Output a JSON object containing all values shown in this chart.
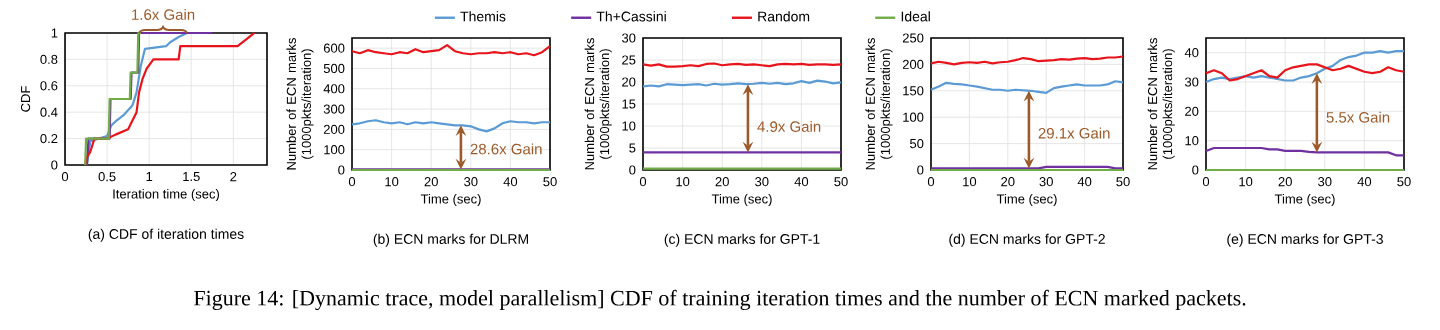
{
  "chart_data": [
    {
      "type": "line",
      "title": "(a) CDF of iteration times",
      "xlabel": "Iteration time (sec)",
      "ylabel": "CDF",
      "xlim": [
        0,
        2.4
      ],
      "xticks": [
        0,
        0.5,
        1,
        1.5,
        2
      ],
      "ylim": [
        0,
        1
      ],
      "yticks": [
        0,
        0.2,
        0.4,
        0.6,
        0.8,
        1
      ],
      "grid": true,
      "annotations": [
        "1.6x Gain"
      ],
      "series": [
        {
          "color": "#5b9bd5",
          "x": [
            0.26,
            0.3,
            0.4,
            0.5,
            0.55,
            0.6,
            0.7,
            0.8,
            0.85,
            0.9,
            0.95,
            1.2,
            1.25,
            1.35,
            1.45
          ],
          "values": [
            0,
            0.18,
            0.2,
            0.22,
            0.3,
            0.33,
            0.38,
            0.45,
            0.55,
            0.75,
            0.88,
            0.9,
            0.93,
            0.97,
            1
          ]
        },
        {
          "color": "#7030a0",
          "x": [
            0.26,
            0.28,
            0.53,
            0.54,
            0.78,
            0.79,
            0.87,
            0.88,
            1.75
          ],
          "values": [
            0,
            0.2,
            0.2,
            0.5,
            0.5,
            0.7,
            0.7,
            1,
            1
          ]
        },
        {
          "color": "#e8141b",
          "x": [
            0.24,
            0.25,
            0.3,
            0.35,
            0.5,
            0.6,
            0.75,
            0.85,
            0.88,
            0.92,
            0.97,
            1.05,
            1.35,
            1.37,
            2.05,
            2.15,
            2.25
          ],
          "values": [
            0,
            0.05,
            0.1,
            0.2,
            0.2,
            0.23,
            0.27,
            0.4,
            0.55,
            0.65,
            0.73,
            0.8,
            0.8,
            0.9,
            0.9,
            0.95,
            1
          ]
        },
        {
          "color": "#70ad47",
          "x": [
            0.24,
            0.25,
            0.52,
            0.53,
            0.77,
            0.78,
            0.86,
            0.87,
            0.9
          ],
          "values": [
            0,
            0.2,
            0.2,
            0.5,
            0.5,
            0.7,
            0.7,
            1,
            1
          ]
        }
      ]
    },
    {
      "type": "line",
      "title": "(b) ECN marks for DLRM",
      "xlabel": "Time (sec)",
      "ylabel": "Number of ECN marks (1000pkts/iteration)",
      "xlim": [
        0,
        50
      ],
      "xticks": [
        0,
        10,
        20,
        30,
        40,
        50
      ],
      "ylim": [
        0,
        650
      ],
      "yticks": [
        0,
        100,
        200,
        300,
        400,
        500,
        600
      ],
      "grid": true,
      "legend": "top",
      "annotations": [
        "28.6x Gain"
      ],
      "x": [
        0,
        2,
        4,
        6,
        8,
        10,
        12,
        14,
        16,
        18,
        20,
        22,
        24,
        26,
        28,
        30,
        32,
        34,
        36,
        38,
        40,
        42,
        44,
        46,
        48,
        50
      ],
      "series": [
        {
          "name": "Themis",
          "color": "#5b9bd5",
          "values": [
            225,
            230,
            240,
            245,
            235,
            230,
            235,
            225,
            235,
            230,
            235,
            230,
            225,
            220,
            220,
            215,
            200,
            190,
            205,
            230,
            240,
            235,
            235,
            230,
            235,
            235
          ]
        },
        {
          "name": "Th+Cassini",
          "color": "#7030a0",
          "values": [
            3,
            3,
            3,
            3,
            3,
            3,
            3,
            3,
            3,
            3,
            3,
            3,
            3,
            3,
            3,
            3,
            3,
            3,
            3,
            3,
            3,
            3,
            3,
            3,
            3,
            3
          ]
        },
        {
          "name": "Random",
          "color": "#e8141b",
          "values": [
            585,
            575,
            590,
            580,
            575,
            570,
            580,
            575,
            595,
            580,
            585,
            590,
            615,
            585,
            575,
            570,
            575,
            575,
            580,
            575,
            580,
            570,
            575,
            565,
            580,
            610
          ]
        },
        {
          "name": "Ideal",
          "color": "#70ad47",
          "values": [
            0,
            0,
            0,
            0,
            0,
            0,
            0,
            0,
            0,
            0,
            0,
            0,
            0,
            0,
            0,
            0,
            0,
            0,
            0,
            0,
            0,
            0,
            0,
            0,
            0,
            0
          ]
        }
      ]
    },
    {
      "type": "line",
      "title": "(c) ECN marks for GPT-1",
      "xlabel": "Time (sec)",
      "ylabel": "Number of ECN marks (1000pkts/iteration)",
      "xlim": [
        0,
        50
      ],
      "xticks": [
        0,
        10,
        20,
        30,
        40,
        50
      ],
      "ylim": [
        0,
        30
      ],
      "yticks": [
        0,
        5,
        10,
        15,
        20,
        25,
        30
      ],
      "grid": true,
      "annotations": [
        "4.9x Gain"
      ],
      "x": [
        0,
        2,
        4,
        6,
        8,
        10,
        12,
        14,
        16,
        18,
        20,
        22,
        24,
        26,
        28,
        30,
        32,
        34,
        36,
        38,
        40,
        42,
        44,
        46,
        48,
        50
      ],
      "series": [
        {
          "color": "#5b9bd5",
          "values": [
            19,
            19.2,
            19,
            19.5,
            19.4,
            19.3,
            19.4,
            19.5,
            19.2,
            19.6,
            19.4,
            19.5,
            19.7,
            19.5,
            19.6,
            19.8,
            19.6,
            19.8,
            19.5,
            19.7,
            20.2,
            19.8,
            20.3,
            20.1,
            19.7,
            19.9
          ]
        },
        {
          "color": "#7030a0",
          "values": [
            4,
            4,
            4,
            4,
            4,
            4,
            4,
            4,
            4,
            4,
            4,
            4,
            4,
            4,
            4,
            4,
            4,
            4,
            4,
            4,
            4,
            4,
            4,
            4,
            4,
            4
          ]
        },
        {
          "color": "#e8141b",
          "values": [
            24,
            23.7,
            24,
            23.5,
            23.5,
            23.6,
            23.8,
            23.6,
            24.1,
            24.2,
            23.8,
            24,
            24.1,
            23.9,
            24,
            23.8,
            23.6,
            24,
            24.1,
            24,
            24.1,
            23.9,
            24,
            24,
            23.9,
            24
          ]
        },
        {
          "color": "#70ad47",
          "values": [
            0.3,
            0.3,
            0.3,
            0.3,
            0.3,
            0.3,
            0.3,
            0.3,
            0.3,
            0.3,
            0.3,
            0.3,
            0.3,
            0.3,
            0.3,
            0.3,
            0.3,
            0.3,
            0.3,
            0.3,
            0.3,
            0.3,
            0.3,
            0.3,
            0.3,
            0.3
          ]
        }
      ]
    },
    {
      "type": "line",
      "title": "(d) ECN marks for GPT-2",
      "xlabel": "Time (sec)",
      "ylabel": "Number of ECN marks (1000pkts/iteration)",
      "xlim": [
        0,
        50
      ],
      "xticks": [
        0,
        10,
        20,
        30,
        40,
        50
      ],
      "ylim": [
        0,
        250
      ],
      "yticks": [
        0,
        50,
        100,
        150,
        200,
        250
      ],
      "grid": true,
      "annotations": [
        "29.1x Gain"
      ],
      "x": [
        0,
        2,
        4,
        6,
        8,
        10,
        12,
        14,
        16,
        18,
        20,
        22,
        24,
        26,
        28,
        30,
        32,
        34,
        36,
        38,
        40,
        42,
        44,
        46,
        48,
        50
      ],
      "series": [
        {
          "color": "#5b9bd5",
          "values": [
            152,
            158,
            165,
            163,
            162,
            160,
            158,
            155,
            152,
            152,
            150,
            152,
            151,
            150,
            148,
            146,
            155,
            158,
            160,
            162,
            160,
            160,
            160,
            162,
            168,
            166
          ]
        },
        {
          "color": "#7030a0",
          "values": [
            3,
            3,
            3,
            3,
            3,
            3,
            3,
            3,
            3,
            3,
            3,
            3,
            3,
            3,
            3,
            6,
            6,
            6,
            6,
            6,
            6,
            6,
            6,
            6,
            3,
            3
          ]
        },
        {
          "color": "#e8141b",
          "values": [
            202,
            205,
            203,
            200,
            203,
            204,
            203,
            205,
            202,
            204,
            205,
            208,
            212,
            210,
            206,
            207,
            208,
            210,
            209,
            211,
            212,
            210,
            211,
            213,
            213,
            215
          ]
        },
        {
          "color": "#70ad47",
          "values": [
            0,
            0,
            0,
            0,
            0,
            0,
            0,
            0,
            0,
            0,
            0,
            0,
            0,
            0,
            0,
            0,
            0,
            0,
            0,
            0,
            0,
            0,
            0,
            0,
            0,
            0
          ]
        }
      ]
    },
    {
      "type": "line",
      "title": "(e) ECN marks for GPT-3",
      "xlabel": "Time (sec)",
      "ylabel": "Number of ECN marks (1000pkts/iteration)",
      "xlim": [
        0,
        50
      ],
      "xticks": [
        0,
        10,
        20,
        30,
        40,
        50
      ],
      "ylim": [
        0,
        45
      ],
      "yticks": [
        0,
        10,
        20,
        30,
        40
      ],
      "grid": true,
      "annotations": [
        "5.5x Gain",
        "Figure 14: [Dynamic trace, model parallelism] CDF of training iteration times and the number of ECN marked packets."
      ],
      "x": [
        0,
        2,
        4,
        6,
        8,
        10,
        12,
        14,
        16,
        18,
        20,
        22,
        24,
        26,
        28,
        30,
        32,
        34,
        36,
        38,
        40,
        42,
        44,
        46,
        48,
        50
      ],
      "series": [
        {
          "color": "#5b9bd5",
          "values": [
            30,
            31,
            31.5,
            31,
            31.5,
            32,
            31.5,
            32,
            31.5,
            31,
            30.5,
            30.5,
            31.5,
            32,
            33,
            34.5,
            35.5,
            37.5,
            38.5,
            39,
            40,
            40,
            40.5,
            40,
            40.5,
            40.5
          ]
        },
        {
          "color": "#7030a0",
          "values": [
            6.5,
            7.5,
            7.5,
            7.5,
            7.5,
            7.5,
            7.5,
            7.5,
            7,
            7,
            6.5,
            6.5,
            6.5,
            6.2,
            6,
            6,
            6,
            6,
            6,
            6,
            6,
            6,
            6,
            6,
            5,
            5
          ]
        },
        {
          "color": "#e8141b",
          "values": [
            33,
            34,
            33,
            30.5,
            31,
            32,
            33,
            34,
            32,
            31.5,
            34,
            35,
            35.5,
            36,
            36,
            35,
            34,
            34.5,
            35.5,
            34.5,
            33.5,
            33,
            33.5,
            35,
            34,
            33.5
          ]
        },
        {
          "color": "#70ad47",
          "values": [
            0,
            0,
            0,
            0,
            0,
            0,
            0,
            0,
            0,
            0,
            0,
            0,
            0,
            0,
            0,
            0,
            0,
            0,
            0,
            0,
            0,
            0,
            0,
            0,
            0,
            0
          ]
        }
      ]
    }
  ]
}
